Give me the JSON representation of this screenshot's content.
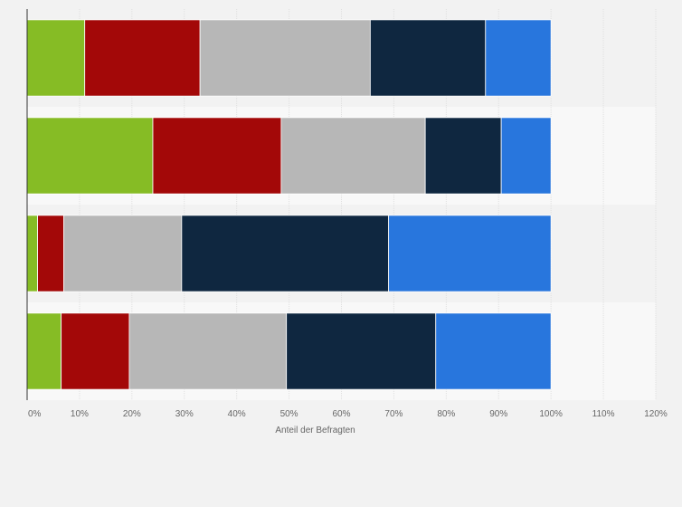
{
  "chart_data": {
    "type": "bar",
    "orientation": "horizontal",
    "stacked": true,
    "xlabel": "Anteil der Befragten",
    "xlim": [
      0,
      120
    ],
    "xticks": [
      "0%",
      "10%",
      "20%",
      "30%",
      "40%",
      "50%",
      "60%",
      "70%",
      "80%",
      "90%",
      "100%",
      "110%",
      "120%"
    ],
    "categories": [
      "",
      "",
      "",
      ""
    ],
    "series": [
      {
        "color": "#86bc25",
        "values": [
          11,
          24,
          2,
          6.5
        ]
      },
      {
        "color": "#a30808",
        "values": [
          22,
          24.5,
          5,
          13
        ]
      },
      {
        "color": "#b7b7b7",
        "values": [
          32.5,
          27.5,
          22.5,
          30
        ]
      },
      {
        "color": "#0f2740",
        "values": [
          22,
          14.5,
          39.5,
          28.5
        ]
      },
      {
        "color": "#2876dd",
        "values": [
          12.5,
          9.5,
          31,
          22
        ]
      }
    ],
    "grid": true,
    "legend": "none"
  }
}
